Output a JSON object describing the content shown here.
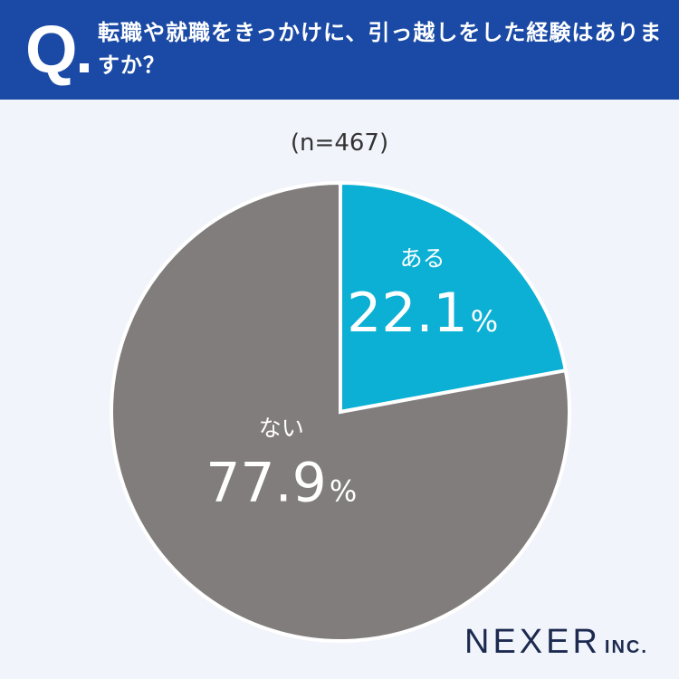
{
  "header": {
    "q_mark": "Q",
    "question": "転職や就職をきっかけに、引っ越しをした経験はありますか？"
  },
  "sample_label": "(n=467)",
  "chart_data": {
    "type": "pie",
    "title": "",
    "categories": [
      "ある",
      "ない"
    ],
    "values": [
      22.1,
      77.9
    ],
    "unit": "%",
    "colors": [
      "#0bb0d4",
      "#827d7d"
    ],
    "slice_border_color": "#ffffff",
    "start_angle": "12 o'clock",
    "direction": "clockwise",
    "legend": "none (labels inside slices)"
  },
  "brand": {
    "name": "NEXER",
    "suffix": "INC.",
    "color": "#1c2a4f"
  },
  "colors": {
    "header_bg": "#1a4aa5",
    "page_bg": "#f2f4fb"
  }
}
